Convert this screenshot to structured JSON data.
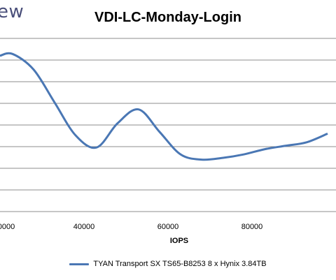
{
  "header": {
    "brand_text": "ew"
  },
  "chart_data": {
    "type": "line",
    "title": "VDI-LC-Monday-Login",
    "xlabel": "IOPS",
    "ylabel": "",
    "x_ticks": [
      "0000",
      "40000",
      "60000",
      "80000"
    ],
    "xlim": [
      20000,
      100000
    ],
    "ylim": [
      0,
      10
    ],
    "y_gridlines": 9,
    "grid": true,
    "legend_position": "bottom",
    "series": [
      {
        "name": "TYAN Transport SX TS65-B8253 8 x Hynix 3.84TB",
        "color": "#4a77b4",
        "x": [
          20000,
          23000,
          28000,
          33000,
          38000,
          43000,
          48000,
          53000,
          58000,
          63000,
          68000,
          73000,
          78000,
          83000,
          88000,
          93000,
          98000
        ],
        "y": [
          9.0,
          9.1,
          8.2,
          6.3,
          4.4,
          3.7,
          5.1,
          5.9,
          4.6,
          3.3,
          3.0,
          3.1,
          3.3,
          3.6,
          3.8,
          4.0,
          4.5
        ]
      }
    ]
  }
}
